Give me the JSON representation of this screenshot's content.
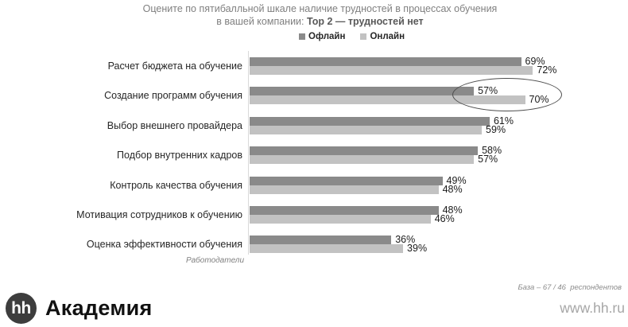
{
  "title": {
    "line1": "Оцените по пятибалльной шкале наличие трудностей в процессах обучения",
    "line2_regular": "в вашей компании: ",
    "line2_bold": "Top 2 — трудностей нет"
  },
  "chart_data": {
    "type": "bar",
    "orientation": "horizontal",
    "title": "Оцените по пятибалльной шкале наличие трудностей в процессах обучения в вашей компании: Top 2 — трудностей нет",
    "categories": [
      "Расчет бюджета на обучение",
      "Создание программ обучения",
      "Выбор внешнего провайдера",
      "Подбор внутренних кадров",
      "Контроль качества обучения",
      "Мотивация сотрудников к обучению",
      "Оценка эффективности обучения"
    ],
    "series": [
      {
        "name": "Офлайн",
        "color": "#8a8a8a",
        "values": [
          69,
          57,
          61,
          58,
          49,
          48,
          36
        ]
      },
      {
        "name": "Онлайн",
        "color": "#c2c2c2",
        "values": [
          72,
          70,
          59,
          57,
          48,
          46,
          39
        ]
      }
    ],
    "value_suffix": "%",
    "xlim": [
      0,
      80
    ],
    "grid": false,
    "legend_position": "top",
    "axis_note": "Работодатели",
    "highlight": {
      "shape": "ellipse",
      "category": "Создание программ обучения",
      "values": [
        "57%",
        "70%"
      ]
    }
  },
  "footer": {
    "base_note": "База – 67 / 46  респондентов",
    "website": "www.hh.ru",
    "logo": {
      "circle_text": "hh",
      "brand": "Академия"
    }
  }
}
